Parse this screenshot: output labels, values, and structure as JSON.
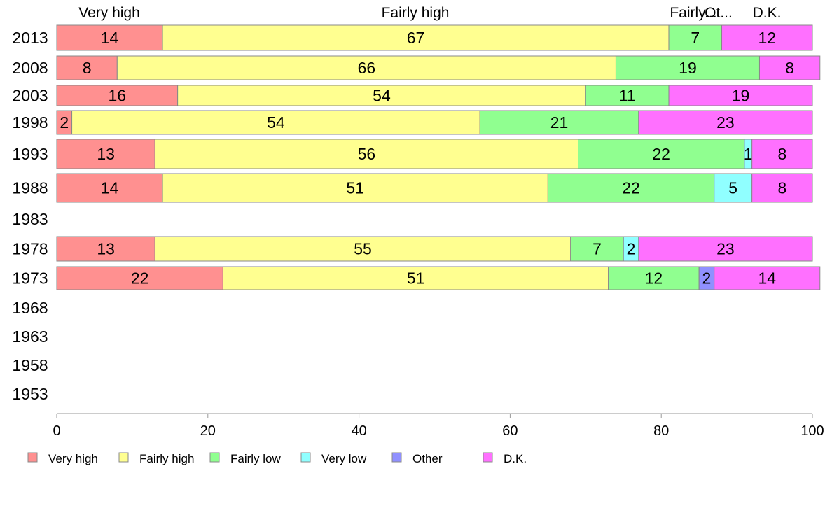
{
  "chart_data": {
    "type": "bar",
    "orientation": "horizontal",
    "stacked": true,
    "categories": [
      "2013",
      "2008",
      "2003",
      "1998",
      "1993",
      "1988",
      "1983",
      "1978",
      "1973",
      "1968",
      "1963",
      "1958",
      "1953"
    ],
    "series": [
      {
        "name": "Very high",
        "color": "#ff9090",
        "values": [
          14,
          8,
          16,
          2,
          13,
          14,
          null,
          13,
          22,
          null,
          null,
          null,
          null
        ]
      },
      {
        "name": "Fairly high",
        "color": "#ffff90",
        "values": [
          67,
          66,
          54,
          54,
          56,
          51,
          null,
          55,
          51,
          null,
          null,
          null,
          null
        ]
      },
      {
        "name": "Fairly low",
        "color": "#90ff90",
        "values": [
          7,
          19,
          11,
          21,
          22,
          22,
          null,
          7,
          12,
          null,
          null,
          null,
          null
        ]
      },
      {
        "name": "Very low",
        "color": "#90ffff",
        "values": [
          0,
          0,
          0,
          0,
          1,
          5,
          null,
          2,
          0,
          null,
          null,
          null,
          null
        ]
      },
      {
        "name": "Other",
        "color": "#9090ff",
        "values": [
          0,
          0,
          0,
          0,
          0,
          0,
          null,
          0,
          2,
          null,
          null,
          null,
          null
        ]
      },
      {
        "name": "D.K.",
        "color": "#ff70ff",
        "values": [
          12,
          8,
          19,
          23,
          8,
          8,
          null,
          23,
          14,
          null,
          null,
          null,
          null
        ]
      }
    ],
    "top_labels": [
      "Very high",
      "Fairly high",
      "Fairly...",
      "Ot...",
      "D.K."
    ],
    "xlim": [
      0,
      100
    ],
    "xticks": [
      "0",
      "20",
      "40",
      "60",
      "80",
      "100"
    ],
    "grid": false,
    "legend_position": "bottom"
  }
}
